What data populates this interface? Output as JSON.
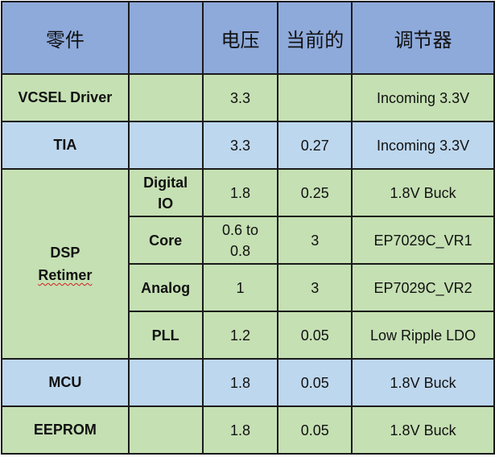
{
  "table": {
    "headers": [
      "零件",
      "",
      "电压",
      "当前的",
      "调节器"
    ],
    "rows": [
      {
        "part": "VCSEL Driver",
        "sub": "",
        "voltage": "3.3",
        "current": "",
        "regulator": "Incoming 3.3V"
      },
      {
        "part": "TIA",
        "sub": "",
        "voltage": "3.3",
        "current": "0.27",
        "regulator": "Incoming 3.3V"
      },
      {
        "part_line1": "DSP",
        "part_line2": "Retimer",
        "subrows": [
          {
            "sub_line1": "Digital",
            "sub_line2": "IO",
            "voltage": "1.8",
            "current": "0.25",
            "regulator": "1.8V Buck"
          },
          {
            "sub": "Core",
            "voltage_line1": "0.6 to",
            "voltage_line2": "0.8",
            "current": "3",
            "regulator": "EP7029C_VR1"
          },
          {
            "sub": "Analog",
            "voltage": "1",
            "current": "3",
            "regulator": "EP7029C_VR2"
          },
          {
            "sub": "PLL",
            "voltage": "1.2",
            "current": "0.05",
            "regulator": "Low Ripple LDO"
          }
        ]
      },
      {
        "part": "MCU",
        "sub": "",
        "voltage": "1.8",
        "current": "0.05",
        "regulator": "1.8V Buck"
      },
      {
        "part": "EEPROM",
        "sub": "",
        "voltage": "1.8",
        "current": "0.05",
        "regulator": "1.8V Buck"
      }
    ]
  },
  "colors": {
    "header": "#8eaadb",
    "green_row": "#c5e0b3",
    "blue_row": "#bdd7ee",
    "border": "#1a1a1a"
  }
}
